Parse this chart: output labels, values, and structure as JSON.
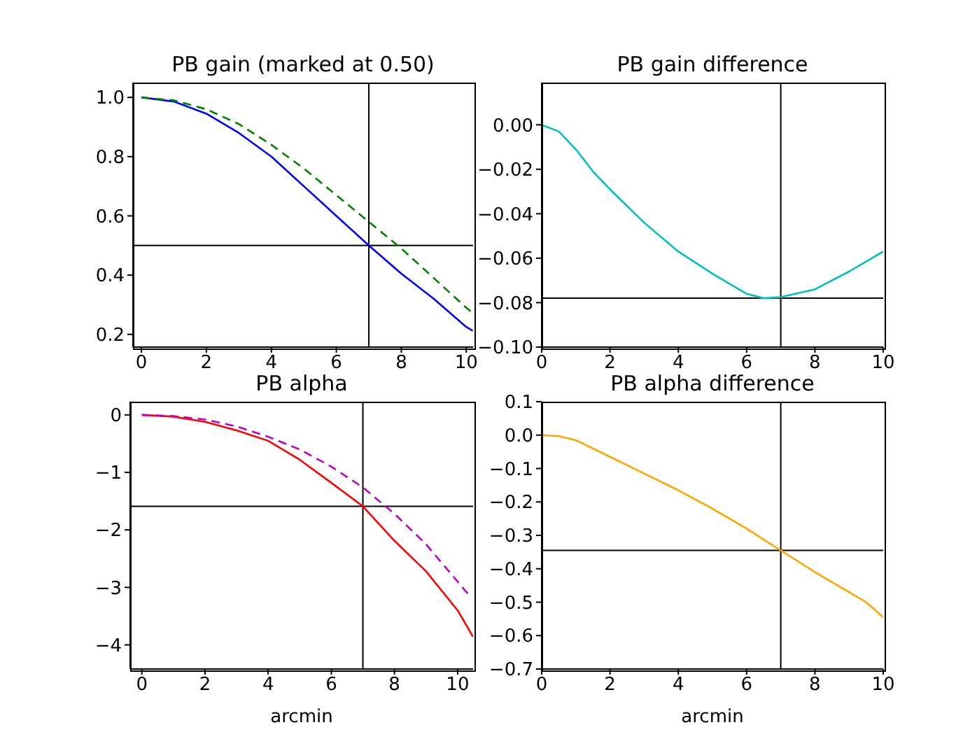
{
  "chart_data": [
    {
      "type": "line",
      "title": "PB gain (marked at 0.50)",
      "xlim": [
        -0.26,
        10.21
      ],
      "xticks": [
        0,
        2,
        4,
        6,
        8,
        10
      ],
      "ylim": [
        0.157,
        1.05
      ],
      "yticks": [
        {
          "value": 0.2,
          "label": "0.2"
        },
        {
          "value": 0.4,
          "label": "0.4"
        },
        {
          "value": 0.6,
          "label": "0.6"
        },
        {
          "value": 0.8,
          "label": "0.8"
        },
        {
          "value": 1.0,
          "label": "1.0"
        }
      ],
      "grid": false,
      "series": [
        {
          "color": "#0000ff",
          "line_style": "solid",
          "x": [
            0,
            1,
            2,
            3,
            4,
            5,
            6,
            7,
            8,
            9,
            10,
            10.2
          ],
          "values": [
            1.0,
            0.986,
            0.945,
            0.88,
            0.8,
            0.7,
            0.6,
            0.5,
            0.405,
            0.32,
            0.225,
            0.212
          ]
        },
        {
          "color": "#008000",
          "line_style": "dashed",
          "x": [
            0,
            1,
            2,
            3,
            4,
            5,
            6,
            7,
            8,
            9,
            10,
            10.2
          ],
          "values": [
            1.0,
            0.99,
            0.96,
            0.91,
            0.84,
            0.76,
            0.67,
            0.58,
            0.49,
            0.39,
            0.29,
            0.272
          ]
        }
      ],
      "ref_lines": [
        {
          "axis": "y",
          "value": 0.5
        },
        {
          "axis": "x",
          "value": 7
        }
      ]
    },
    {
      "type": "line",
      "title": "PB gain difference",
      "xlim": [
        0,
        10
      ],
      "xticks": [
        0,
        2,
        4,
        6,
        8,
        10
      ],
      "ylim": [
        -0.1,
        0.019
      ],
      "yticks": [
        {
          "value": -0.1,
          "label": "−0.10"
        },
        {
          "value": -0.08,
          "label": "−0.08"
        },
        {
          "value": -0.06,
          "label": "−0.06"
        },
        {
          "value": -0.04,
          "label": "−0.04"
        },
        {
          "value": -0.02,
          "label": "−0.02"
        },
        {
          "value": 0,
          "label": "0.00"
        }
      ],
      "grid": false,
      "series": [
        {
          "color": "#00bfbf",
          "line_style": "solid",
          "x": [
            0,
            0.5,
            1,
            1.5,
            2,
            3,
            4,
            5,
            6,
            6.5,
            7,
            8,
            9,
            10
          ],
          "values": [
            0,
            -0.003,
            -0.011,
            -0.021,
            -0.029,
            -0.044,
            -0.057,
            -0.067,
            -0.076,
            -0.078,
            -0.0775,
            -0.074,
            -0.066,
            -0.057
          ]
        }
      ],
      "ref_lines": [
        {
          "axis": "y",
          "value": -0.078
        },
        {
          "axis": "x",
          "value": 7
        }
      ]
    },
    {
      "type": "line",
      "title": "PB alpha",
      "xlabel": "arcmin",
      "xlim": [
        -0.37,
        10.49
      ],
      "xticks": [
        0,
        2,
        4,
        6,
        8,
        10
      ],
      "ylim": [
        -4.42,
        0.23
      ],
      "yticks": [
        {
          "value": -4,
          "label": "−4"
        },
        {
          "value": -3,
          "label": "−3"
        },
        {
          "value": -2,
          "label": "−2"
        },
        {
          "value": -1,
          "label": "−1"
        },
        {
          "value": 0,
          "label": "0"
        }
      ],
      "grid": false,
      "series": [
        {
          "color": "#ff0000",
          "line_style": "solid",
          "x": [
            0,
            1,
            2,
            3,
            4,
            5,
            6,
            7,
            8,
            9,
            10,
            10.49
          ],
          "values": [
            0,
            -0.03,
            -0.12,
            -0.27,
            -0.45,
            -0.78,
            -1.18,
            -1.59,
            -2.19,
            -2.72,
            -3.4,
            -3.86
          ]
        },
        {
          "color": "#bf00bf",
          "line_style": "dashed",
          "x": [
            0,
            1,
            2,
            3,
            4,
            5,
            6,
            7,
            8,
            9,
            10,
            10.4
          ],
          "values": [
            0,
            -0.02,
            -0.08,
            -0.2,
            -0.38,
            -0.6,
            -0.9,
            -1.26,
            -1.72,
            -2.25,
            -2.9,
            -3.16
          ]
        }
      ],
      "ref_lines": [
        {
          "axis": "y",
          "value": -1.59
        },
        {
          "axis": "x",
          "value": 7
        }
      ]
    },
    {
      "type": "line",
      "title": "PB alpha difference",
      "xlabel": "arcmin",
      "xlim": [
        0,
        10
      ],
      "xticks": [
        0,
        2,
        4,
        6,
        8,
        10
      ],
      "ylim": [
        -0.7,
        0.1
      ],
      "yticks": [
        {
          "value": -0.7,
          "label": "−0.7"
        },
        {
          "value": -0.6,
          "label": "−0.6"
        },
        {
          "value": -0.5,
          "label": "−0.5"
        },
        {
          "value": -0.4,
          "label": "−0.4"
        },
        {
          "value": -0.3,
          "label": "−0.3"
        },
        {
          "value": -0.2,
          "label": "−0.2"
        },
        {
          "value": -0.1,
          "label": "−0.1"
        },
        {
          "value": 0,
          "label": "0.0"
        },
        {
          "value": 0.1,
          "label": "0.1"
        }
      ],
      "grid": false,
      "series": [
        {
          "color": "#ffa500",
          "line_style": "solid",
          "x": [
            0,
            0.5,
            1,
            2,
            3,
            4,
            5,
            6,
            7,
            8,
            9,
            9.5,
            10
          ],
          "values": [
            0,
            -0.003,
            -0.015,
            -0.065,
            -0.115,
            -0.165,
            -0.22,
            -0.28,
            -0.345,
            -0.41,
            -0.47,
            -0.5,
            -0.545
          ]
        }
      ],
      "ref_lines": [
        {
          "axis": "y",
          "value": -0.345
        },
        {
          "axis": "x",
          "value": 7
        }
      ]
    }
  ]
}
